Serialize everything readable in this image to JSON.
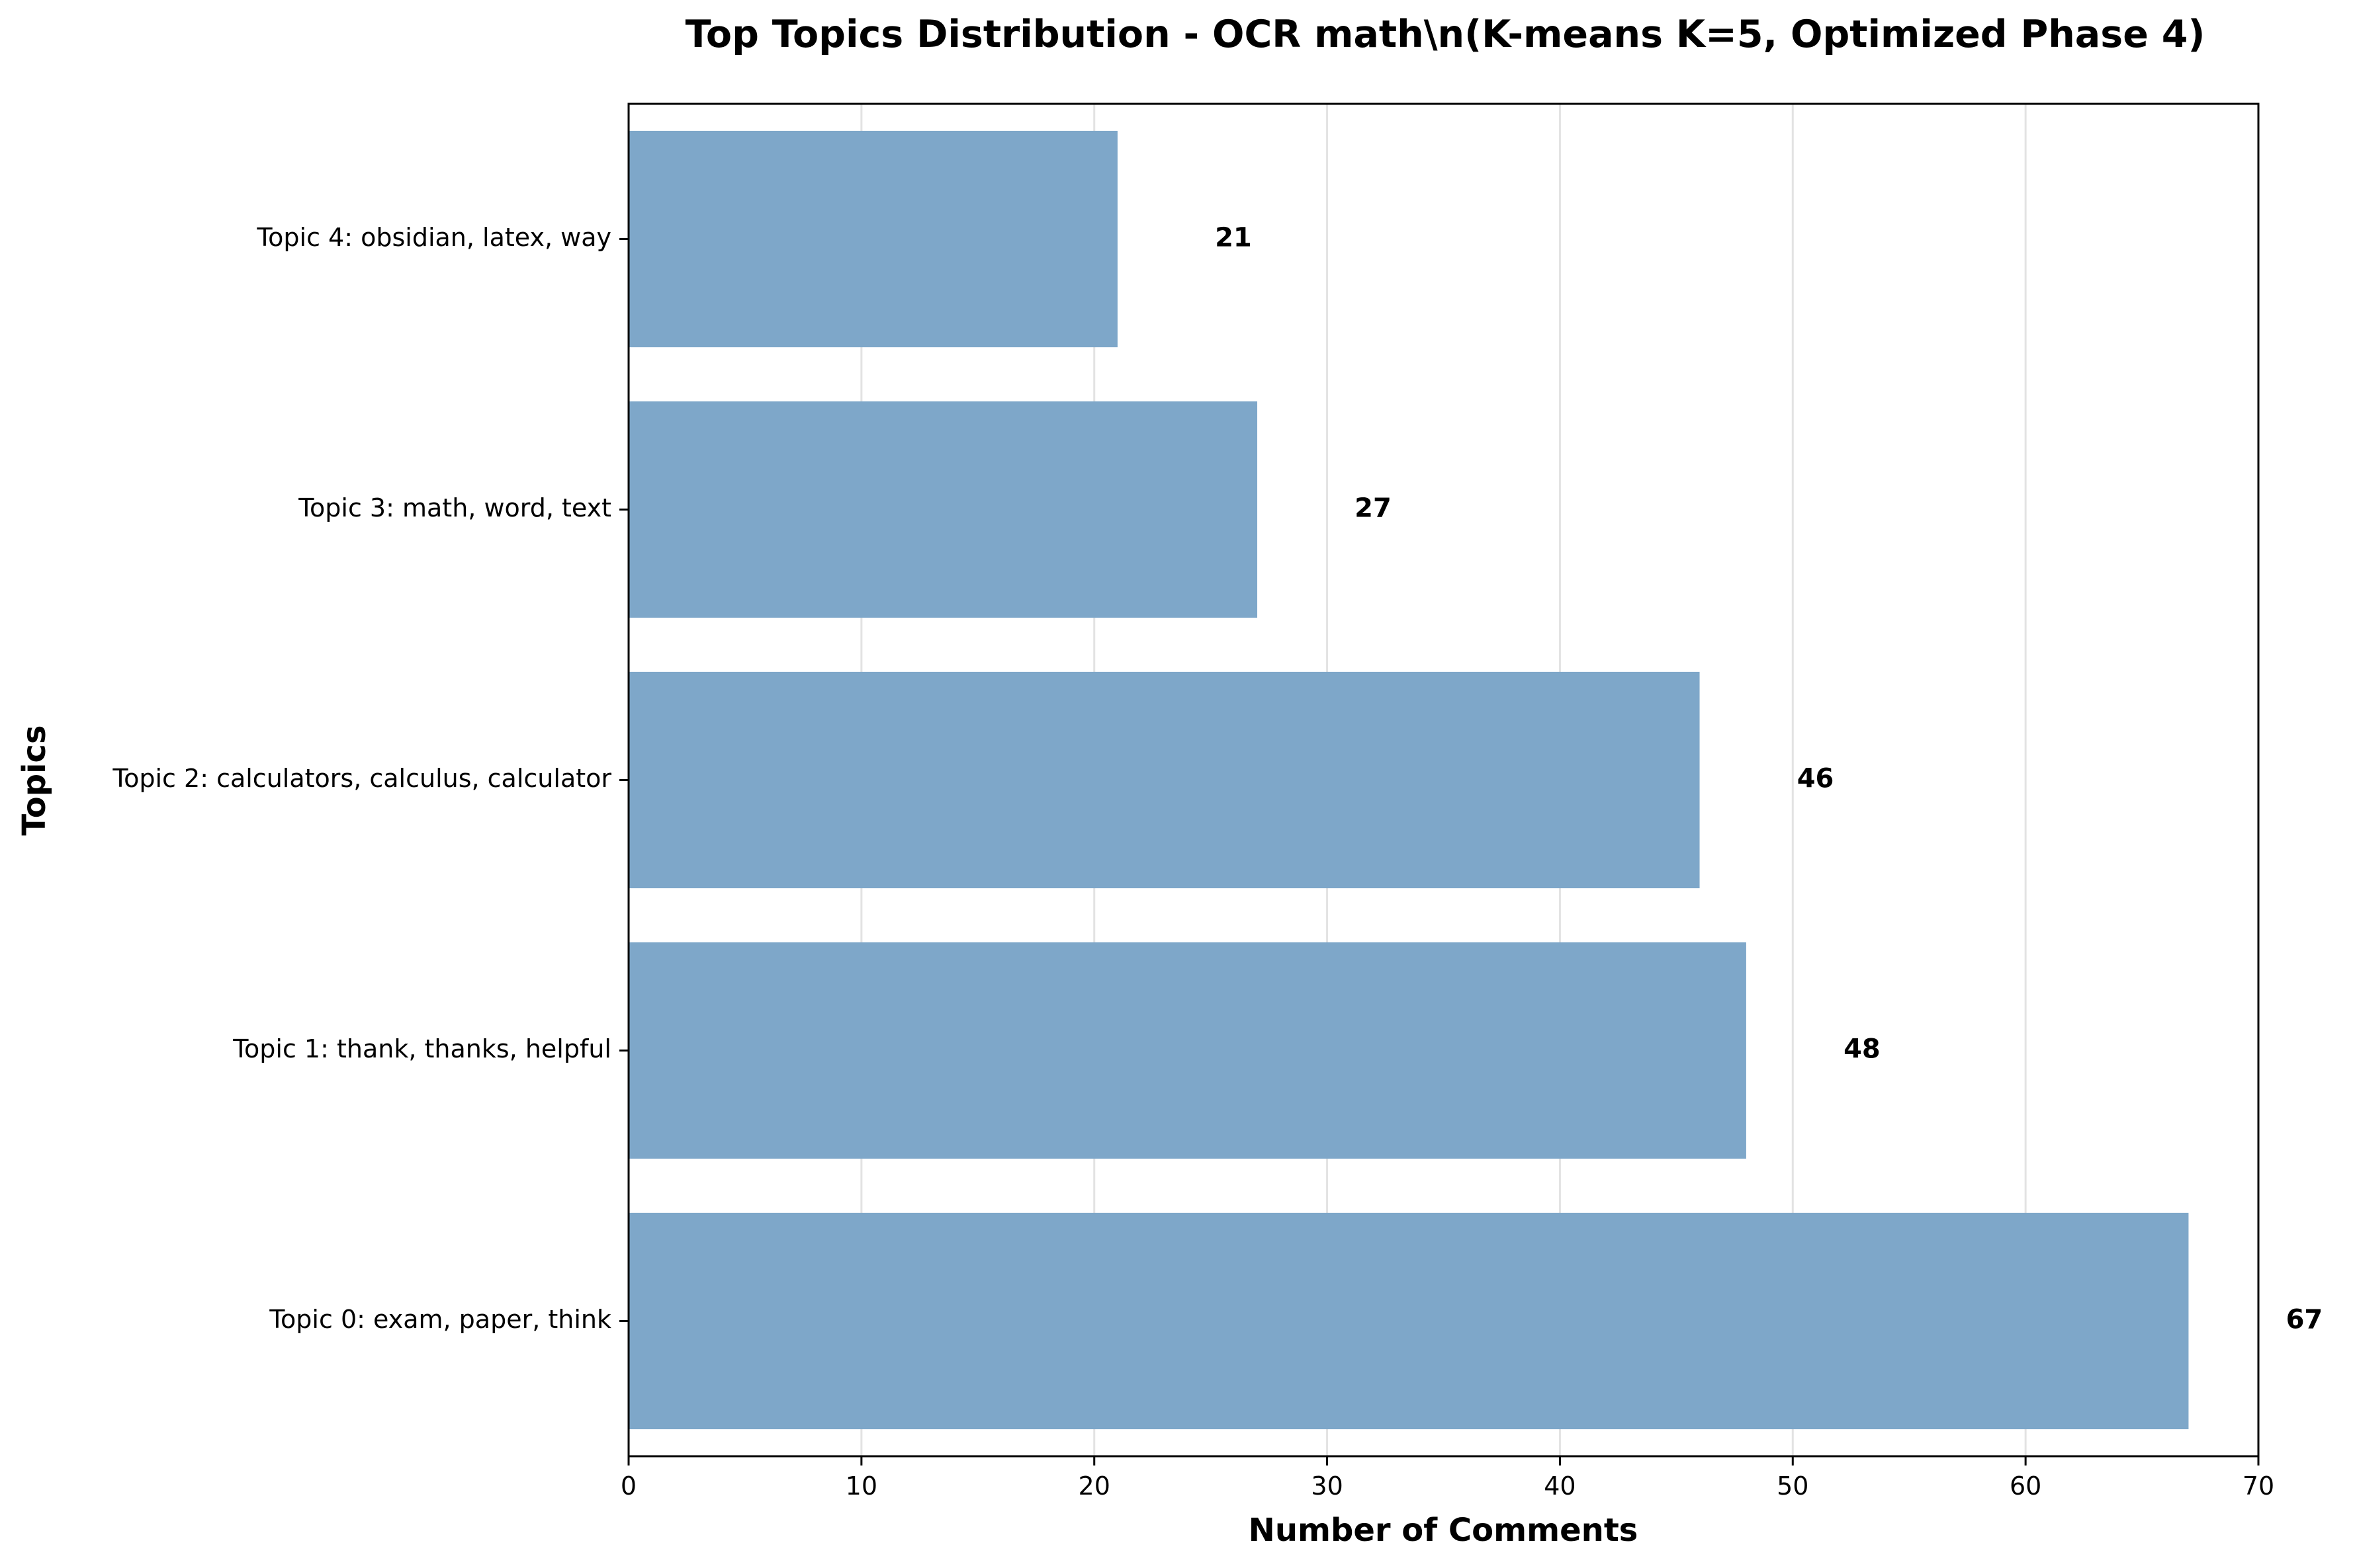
{
  "chart_data": {
    "type": "bar",
    "orientation": "horizontal",
    "title": "Top Topics Distribution - OCR math\\n(K-means K=5, Optimized Phase 4)",
    "xlabel": "Number of Comments",
    "ylabel": "Topics",
    "categories": [
      "Topic 0: exam, paper, think",
      "Topic 1: thank, thanks, helpful",
      "Topic 2: calculators, calculus, calculator",
      "Topic 3: math, word, text",
      "Topic 4: obsidian, latex, way"
    ],
    "values": [
      67,
      48,
      46,
      27,
      21
    ],
    "data_labels": [
      "67",
      "48",
      "46",
      "27",
      "21"
    ],
    "xlim": [
      0,
      70
    ],
    "xticks": [
      0,
      10,
      20,
      30,
      40,
      50,
      60,
      70
    ],
    "xtick_labels": [
      "0",
      "10",
      "20",
      "30",
      "40",
      "50",
      "60",
      "70"
    ],
    "grid": "vertical",
    "legend": "none",
    "bar_color": "#7ea7c9",
    "grid_color": "#e3e3e3"
  }
}
